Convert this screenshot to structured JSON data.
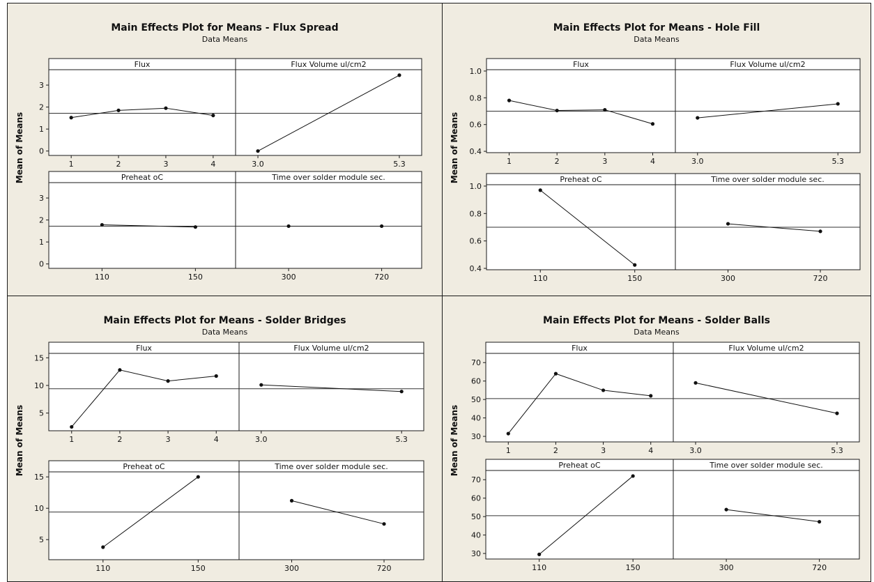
{
  "chart_data": [
    {
      "type": "line",
      "title": "Main Effects Plot for Means - Flux Spread",
      "subtitle": "Data Means",
      "ylabel": "Mean of Means",
      "ylim": [
        -0.2,
        3.7
      ],
      "yticks": [
        0,
        1,
        2,
        3
      ],
      "grand_mean": 1.72,
      "panels": [
        {
          "label": "Flux",
          "categories": [
            "1",
            "2",
            "3",
            "4"
          ],
          "values": [
            1.52,
            1.85,
            1.95,
            1.62
          ]
        },
        {
          "label": "Flux Volume ul/cm2",
          "categories": [
            "3.0",
            "5.3"
          ],
          "values": [
            0.0,
            3.45
          ]
        },
        {
          "label": "Preheat oC",
          "categories": [
            "110",
            "150"
          ],
          "values": [
            1.78,
            1.68
          ]
        },
        {
          "label": "Time over solder module sec.",
          "categories": [
            "300",
            "720"
          ],
          "values": [
            1.72,
            1.72
          ]
        }
      ]
    },
    {
      "type": "line",
      "title": "Main Effects Plot for Means - Hole Fill",
      "subtitle": "Data Means",
      "ylabel": "Mean of Means",
      "ylim": [
        0.39,
        1.01
      ],
      "yticks": [
        "0.4",
        "0.6",
        "0.8",
        "1.0"
      ],
      "grand_mean": 0.7,
      "panels": [
        {
          "label": "Flux",
          "categories": [
            "1",
            "2",
            "3",
            "4"
          ],
          "values": [
            0.78,
            0.705,
            0.71,
            0.605
          ]
        },
        {
          "label": "Flux Volume ul/cm2",
          "categories": [
            "3.0",
            "5.3"
          ],
          "values": [
            0.65,
            0.755
          ]
        },
        {
          "label": "Preheat oC",
          "categories": [
            "110",
            "150"
          ],
          "values": [
            0.97,
            0.425
          ]
        },
        {
          "label": "Time over solder module sec.",
          "categories": [
            "300",
            "720"
          ],
          "values": [
            0.725,
            0.67
          ]
        }
      ]
    },
    {
      "type": "line",
      "title": "Main Effects Plot for Means - Solder Bridges",
      "subtitle": "Data Means",
      "ylabel": "Mean of Means",
      "ylim": [
        1.8,
        15.8
      ],
      "yticks": [
        5,
        10,
        15
      ],
      "grand_mean": 9.4,
      "panels": [
        {
          "label": "Flux",
          "categories": [
            "1",
            "2",
            "3",
            "4"
          ],
          "values": [
            2.5,
            12.8,
            10.8,
            11.7
          ]
        },
        {
          "label": "Flux Volume ul/cm2",
          "categories": [
            "3.0",
            "5.3"
          ],
          "values": [
            10.1,
            8.9
          ]
        },
        {
          "label": "Preheat oC",
          "categories": [
            "110",
            "150"
          ],
          "values": [
            3.8,
            15.0
          ]
        },
        {
          "label": "Time over solder module sec.",
          "categories": [
            "300",
            "720"
          ],
          "values": [
            11.2,
            7.5
          ]
        }
      ]
    },
    {
      "type": "line",
      "title": "Main Effects Plot for Means - Solder Balls",
      "subtitle": "Data Means",
      "ylabel": "Mean of Means",
      "ylim": [
        27,
        75
      ],
      "yticks": [
        30,
        40,
        50,
        60,
        70
      ],
      "grand_mean": 50.5,
      "panels": [
        {
          "label": "Flux",
          "categories": [
            "1",
            "2",
            "3",
            "4"
          ],
          "values": [
            31.5,
            64.0,
            55.0,
            52.0
          ]
        },
        {
          "label": "Flux Volume ul/cm2",
          "categories": [
            "3.0",
            "5.3"
          ],
          "values": [
            59.0,
            42.5
          ]
        },
        {
          "label": "Preheat oC",
          "categories": [
            "110",
            "150"
          ],
          "values": [
            29.5,
            72.0
          ]
        },
        {
          "label": "Time over solder module sec.",
          "categories": [
            "300",
            "720"
          ],
          "values": [
            53.8,
            47.2
          ]
        }
      ]
    }
  ]
}
